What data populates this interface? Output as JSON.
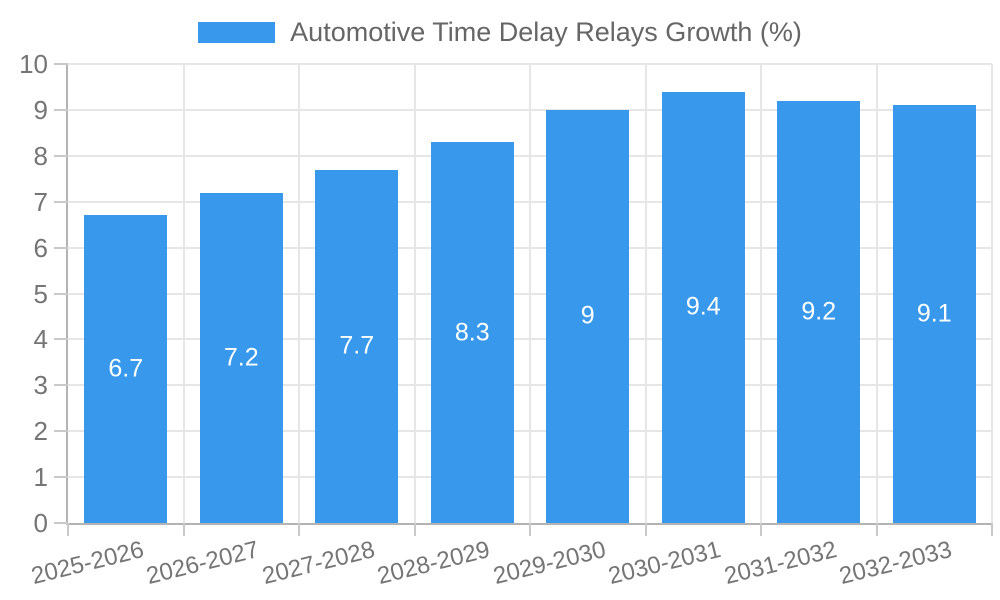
{
  "legend": {
    "label": "Automotive Time Delay Relays Growth (%)"
  },
  "chart_data": {
    "type": "bar",
    "title": "Automotive Time Delay Relays Growth (%)",
    "series_name": "Automotive Time Delay Relays Growth (%)",
    "categories": [
      "2025-2026",
      "2026-2027",
      "2027-2028",
      "2028-2029",
      "2029-2030",
      "2030-2031",
      "2031-2032",
      "2032-2033"
    ],
    "values": [
      6.7,
      7.2,
      7.7,
      8.3,
      9,
      9.4,
      9.2,
      9.1
    ],
    "value_labels": [
      "6.7",
      "7.2",
      "7.7",
      "8.3",
      "9",
      "9.4",
      "9.2",
      "9.1"
    ],
    "xlabel": "",
    "ylabel": "",
    "ylim": [
      0,
      10
    ],
    "yticks": [
      0,
      1,
      2,
      3,
      4,
      5,
      6,
      7,
      8,
      9,
      10
    ],
    "grid": true,
    "legend_position": "top-center",
    "colors": {
      "bar": "#3899ec",
      "value_label": "#ffffff",
      "axis_label": "#757575",
      "title": "#666666",
      "grid_line": "#e6e6e6",
      "axis_line": "#b3b3b3",
      "tick": "#c9c9c9",
      "background": "#ffffff"
    }
  }
}
